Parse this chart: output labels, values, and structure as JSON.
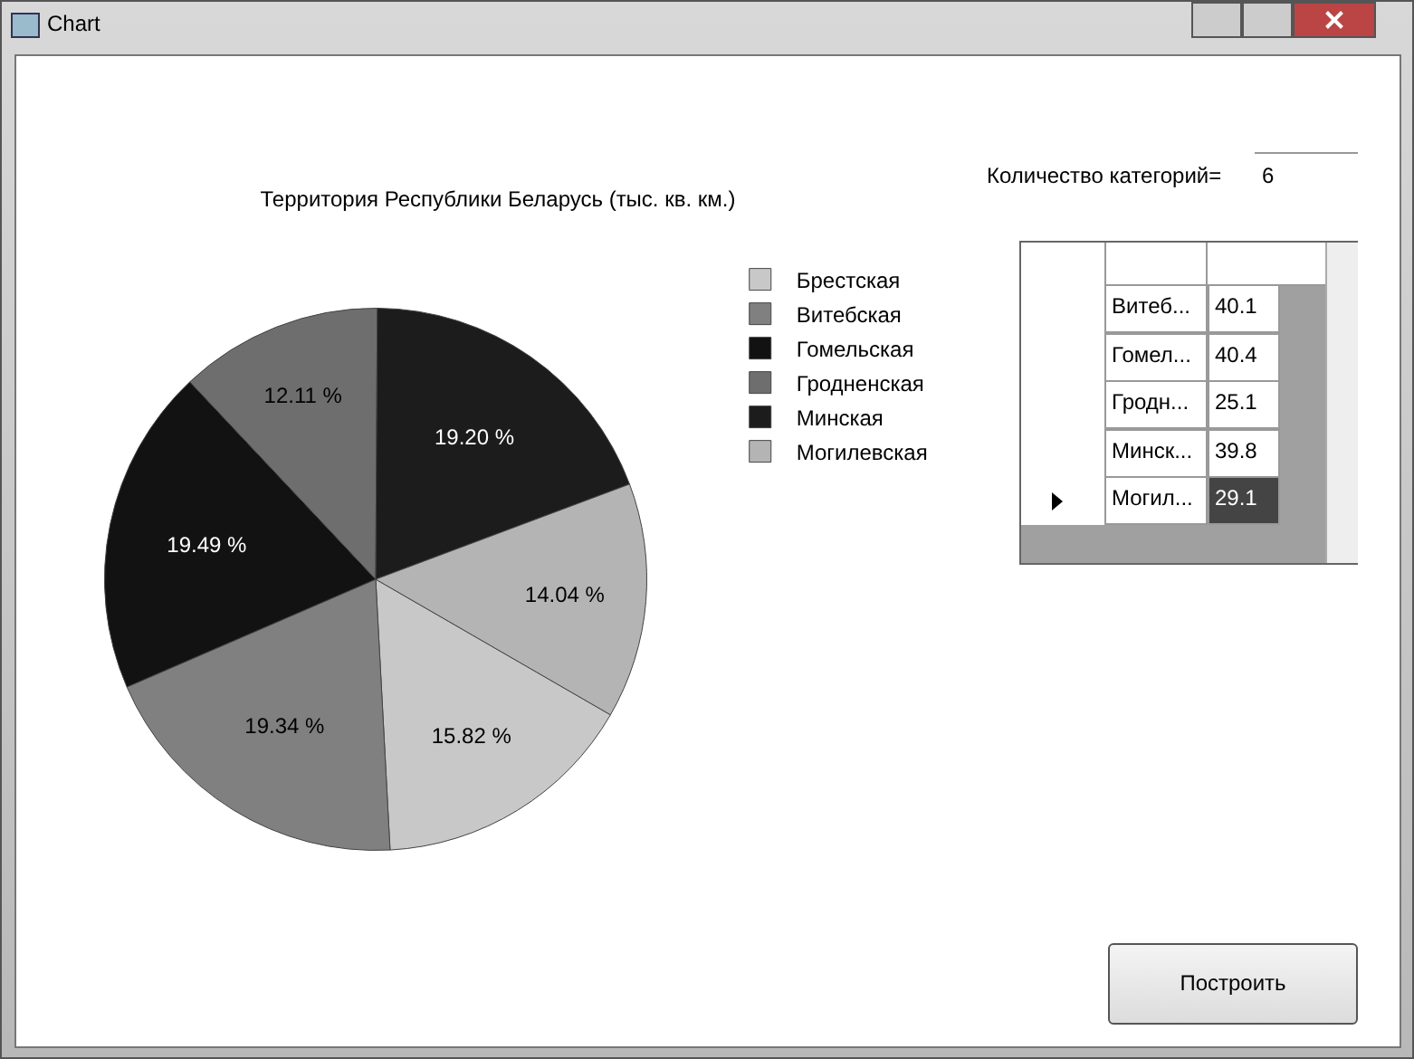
{
  "chart_data": {
    "type": "pie",
    "title": "Территория Республики Беларусь (тыс. кв. км.)",
    "categories": [
      "Брестская",
      "Витебская",
      "Гомельская",
      "Гродненская",
      "Минская",
      "Могилевская"
    ],
    "values": [
      15.82,
      19.34,
      19.49,
      12.11,
      19.2,
      14.04
    ],
    "colors": [
      "#c8c8c8",
      "#808080",
      "#121212",
      "#6e6e6e",
      "#1c1c1c",
      "#b4b4b4"
    ],
    "value_labels": [
      "15.82 %",
      "19.34 %",
      "19.49 %",
      "12.11 %",
      "19.20 %",
      "14.04 %"
    ],
    "legend": "top right",
    "annotations": [
      "Chart",
      "Количество категорий=",
      "6",
      "Витеб...",
      "40.1",
      "Гомел...",
      "40.4",
      "Гродн...",
      "25.1",
      "Минск...",
      "39.8",
      "Могил...",
      "29.1",
      "Построить"
    ]
  }
}
